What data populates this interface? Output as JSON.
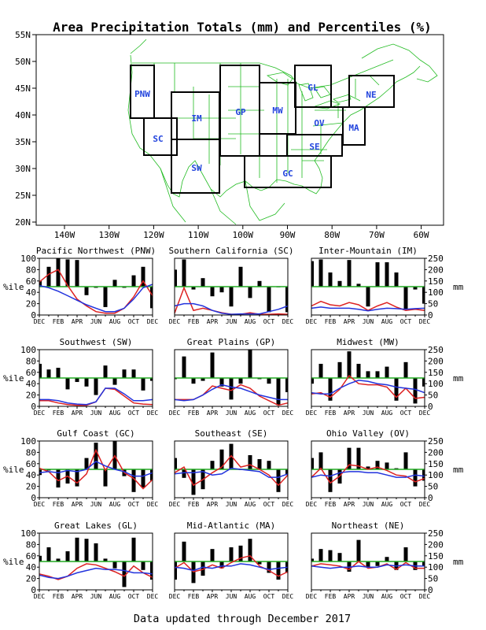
{
  "title": "Area Precipitation Totals (mm) and Percentiles (%)",
  "footer": "Data updated through December 2017",
  "colors": {
    "map_lines": "#22bb22",
    "region_box": "#000000",
    "region_label": "#2244dd",
    "bar": "#000000",
    "line_red": "#dd2222",
    "line_blue": "#2233dd",
    "line_green": "#22aa22"
  },
  "map": {
    "lat_labels": [
      "55N",
      "50N",
      "45N",
      "40N",
      "35N",
      "30N",
      "25N",
      "20N"
    ],
    "lon_labels": [
      "140W",
      "130W",
      "120W",
      "110W",
      "100W",
      "90W",
      "80W",
      "70W",
      "60W"
    ],
    "regions": [
      "PNW",
      "SC",
      "IM",
      "SW",
      "GP",
      "MW",
      "GL",
      "OV",
      "SE",
      "GC",
      "MA",
      "NE"
    ]
  },
  "panel_axis": {
    "percentile_ticks": [
      "0",
      "20",
      "40",
      "60",
      "80",
      "100"
    ],
    "mm_ticks": [
      "0",
      "50",
      "100",
      "150",
      "200",
      "250"
    ],
    "left_unit": "%ile",
    "right_unit": "mm",
    "month_labels": [
      "DEC",
      "FEB",
      "APR",
      "JUN",
      "AUG",
      "OCT",
      "DEC"
    ]
  },
  "chart_data": [
    {
      "type": "bar",
      "title": "Pacific Northwest (PNW)",
      "ylim": [
        0,
        100
      ],
      "y2lim": [
        0,
        250
      ],
      "months": [
        "DEC",
        "JAN",
        "FEB",
        "MAR",
        "APR",
        "MAY",
        "JUN",
        "JUL",
        "AUG",
        "SEP",
        "OCT",
        "NOV",
        "DEC"
      ],
      "percentiles": [
        60,
        85,
        100,
        98,
        97,
        35,
        48,
        14,
        62,
        48,
        70,
        85,
        12
      ],
      "series": [
        {
          "values": [
            145,
            180,
            200,
            130,
            70,
            40,
            15,
            8,
            8,
            30,
            80,
            150,
            85
          ]
        },
        {
          "values": [
            130,
            120,
            105,
            85,
            65,
            45,
            30,
            15,
            15,
            30,
            70,
            120,
            135
          ]
        }
      ]
    },
    {
      "type": "bar",
      "title": "Southern California (SC)",
      "ylim": [
        0,
        100
      ],
      "y2lim": [
        0,
        250
      ],
      "months": [
        "DEC",
        "JAN",
        "FEB",
        "MAR",
        "APR",
        "MAY",
        "JUN",
        "JUL",
        "AUG",
        "SEP",
        "OCT",
        "NOV",
        "DEC"
      ],
      "percentiles": [
        80,
        98,
        45,
        65,
        33,
        40,
        15,
        85,
        30,
        60,
        5,
        50,
        5
      ],
      "series": [
        {
          "values": [
            8,
            120,
            20,
            30,
            20,
            10,
            3,
            3,
            10,
            3,
            3,
            5,
            3
          ]
        },
        {
          "values": [
            40,
            50,
            50,
            40,
            20,
            8,
            3,
            5,
            5,
            5,
            15,
            25,
            40
          ]
        }
      ]
    },
    {
      "type": "bar",
      "title": "Inter-Mountain (IM)",
      "ylim": [
        0,
        100
      ],
      "y2lim": [
        0,
        250
      ],
      "months": [
        "DEC",
        "JAN",
        "FEB",
        "MAR",
        "APR",
        "MAY",
        "JUN",
        "JUL",
        "AUG",
        "SEP",
        "OCT",
        "NOV",
        "DEC"
      ],
      "percentiles": [
        95,
        98,
        75,
        60,
        97,
        55,
        15,
        93,
        93,
        75,
        10,
        45,
        20
      ],
      "series": [
        {
          "values": [
            40,
            60,
            45,
            40,
            55,
            45,
            20,
            40,
            55,
            35,
            20,
            25,
            20
          ]
        },
        {
          "values": [
            30,
            35,
            30,
            30,
            30,
            25,
            18,
            25,
            30,
            28,
            25,
            28,
            30
          ]
        }
      ]
    },
    {
      "type": "bar",
      "title": "Southwest (SW)",
      "ylim": [
        0,
        100
      ],
      "y2lim": [
        0,
        250
      ],
      "months": [
        "DEC",
        "JAN",
        "FEB",
        "MAR",
        "APR",
        "MAY",
        "JUN",
        "JUL",
        "AUG",
        "SEP",
        "OCT",
        "NOV",
        "DEC"
      ],
      "percentiles": [
        75,
        65,
        68,
        30,
        43,
        35,
        20,
        72,
        38,
        65,
        65,
        28,
        45
      ],
      "series": [
        {
          "values": [
            25,
            25,
            15,
            8,
            5,
            5,
            20,
            80,
            75,
            45,
            15,
            10,
            8
          ]
        },
        {
          "values": [
            30,
            30,
            25,
            15,
            10,
            8,
            20,
            80,
            80,
            55,
            25,
            25,
            30
          ]
        }
      ]
    },
    {
      "type": "bar",
      "title": "Great Plains (GP)",
      "ylim": [
        0,
        100
      ],
      "y2lim": [
        0,
        250
      ],
      "months": [
        "DEC",
        "JAN",
        "FEB",
        "MAR",
        "APR",
        "MAY",
        "JUN",
        "JUL",
        "AUG",
        "SEP",
        "OCT",
        "NOV",
        "DEC"
      ],
      "percentiles": [
        48,
        88,
        40,
        45,
        95,
        35,
        12,
        40,
        100,
        48,
        40,
        2,
        25
      ],
      "series": [
        {
          "values": [
            30,
            30,
            30,
            50,
            90,
            80,
            70,
            95,
            80,
            45,
            25,
            5,
            15
          ]
        },
        {
          "values": [
            30,
            25,
            30,
            50,
            75,
            95,
            85,
            80,
            65,
            50,
            40,
            30,
            30
          ]
        }
      ]
    },
    {
      "type": "bar",
      "title": "Midwest (MW)",
      "ylim": [
        0,
        100
      ],
      "y2lim": [
        0,
        250
      ],
      "months": [
        "DEC",
        "JAN",
        "FEB",
        "MAR",
        "APR",
        "MAY",
        "JUN",
        "JUL",
        "AUG",
        "SEP",
        "OCT",
        "NOV",
        "DEC"
      ],
      "percentiles": [
        40,
        75,
        10,
        78,
        97,
        75,
        62,
        62,
        70,
        10,
        78,
        5,
        35
      ],
      "series": [
        {
          "values": [
            55,
            60,
            40,
            75,
            135,
            100,
            95,
            95,
            85,
            40,
            80,
            35,
            40
          ]
        },
        {
          "values": [
            60,
            55,
            55,
            80,
            100,
            115,
            110,
            100,
            95,
            85,
            80,
            75,
            60
          ]
        }
      ]
    },
    {
      "type": "bar",
      "title": "Gulf Coast (GC)",
      "ylim": [
        0,
        100
      ],
      "y2lim": [
        0,
        250
      ],
      "months": [
        "DEC",
        "JAN",
        "FEB",
        "MAR",
        "APR",
        "MAY",
        "JUN",
        "JUL",
        "AUG",
        "SEP",
        "OCT",
        "NOV",
        "DEC"
      ],
      "percentiles": [
        40,
        48,
        18,
        25,
        20,
        70,
        97,
        20,
        100,
        38,
        10,
        18,
        30
      ],
      "series": [
        {
          "values": [
            130,
            115,
            75,
            95,
            65,
            105,
            210,
            120,
            185,
            110,
            85,
            40,
            80
          ]
        },
        {
          "values": [
            110,
            115,
            110,
            120,
            115,
            125,
            160,
            140,
            125,
            115,
            95,
            95,
            110
          ]
        }
      ]
    },
    {
      "type": "bar",
      "title": "Southeast (SE)",
      "ylim": [
        0,
        100
      ],
      "y2lim": [
        0,
        250
      ],
      "months": [
        "DEC",
        "JAN",
        "FEB",
        "MAR",
        "APR",
        "MAY",
        "JUN",
        "JUL",
        "AUG",
        "SEP",
        "OCT",
        "NOV",
        "DEC"
      ],
      "percentiles": [
        70,
        35,
        5,
        15,
        65,
        85,
        95,
        50,
        75,
        68,
        65,
        10,
        40
      ],
      "series": [
        {
          "values": [
            110,
            135,
            55,
            80,
            110,
            135,
            185,
            135,
            145,
            125,
            100,
            55,
            100
          ]
        },
        {
          "values": [
            105,
            110,
            110,
            115,
            100,
            105,
            130,
            125,
            120,
            115,
            90,
            90,
            105
          ]
        }
      ]
    },
    {
      "type": "bar",
      "title": "Ohio Valley (OV)",
      "ylim": [
        0,
        100
      ],
      "y2lim": [
        0,
        250
      ],
      "months": [
        "DEC",
        "JAN",
        "FEB",
        "MAR",
        "APR",
        "MAY",
        "JUN",
        "JUL",
        "AUG",
        "SEP",
        "OCT",
        "NOV",
        "DEC"
      ],
      "percentiles": [
        70,
        80,
        10,
        25,
        88,
        88,
        55,
        65,
        62,
        52,
        80,
        20,
        30
      ],
      "series": [
        {
          "values": [
            90,
            130,
            65,
            95,
            145,
            140,
            125,
            135,
            120,
            100,
            95,
            70,
            85
          ]
        },
        {
          "values": [
            90,
            100,
            95,
            110,
            115,
            115,
            110,
            110,
            100,
            90,
            90,
            100,
            95
          ]
        }
      ]
    },
    {
      "type": "bar",
      "title": "Great Lakes (GL)",
      "ylim": [
        0,
        100
      ],
      "y2lim": [
        0,
        250
      ],
      "months": [
        "DEC",
        "JAN",
        "FEB",
        "MAR",
        "APR",
        "MAY",
        "JUN",
        "JUL",
        "AUG",
        "SEP",
        "OCT",
        "NOV",
        "DEC"
      ],
      "percentiles": [
        60,
        75,
        55,
        68,
        92,
        90,
        82,
        55,
        38,
        5,
        92,
        35,
        18
      ],
      "series": [
        {
          "values": [
            70,
            60,
            45,
            60,
            95,
            115,
            110,
            95,
            80,
            60,
            105,
            75,
            55
          ]
        },
        {
          "values": [
            65,
            55,
            50,
            60,
            75,
            85,
            95,
            90,
            90,
            85,
            75,
            75,
            70
          ]
        }
      ]
    },
    {
      "type": "bar",
      "title": "Mid-Atlantic (MA)",
      "ylim": [
        0,
        100
      ],
      "y2lim": [
        0,
        250
      ],
      "months": [
        "DEC",
        "JAN",
        "FEB",
        "MAR",
        "APR",
        "MAY",
        "JUN",
        "JUL",
        "AUG",
        "SEP",
        "OCT",
        "NOV",
        "DEC"
      ],
      "percentiles": [
        18,
        85,
        12,
        25,
        72,
        38,
        75,
        78,
        90,
        45,
        30,
        18,
        30
      ],
      "series": [
        {
          "values": [
            95,
            120,
            80,
            90,
            110,
            95,
            120,
            140,
            150,
            105,
            85,
            60,
            80
          ]
        },
        {
          "values": [
            100,
            95,
            85,
            100,
            95,
            105,
            105,
            115,
            110,
            100,
            90,
            95,
            100
          ]
        }
      ]
    },
    {
      "type": "bar",
      "title": "Northeast (NE)",
      "ylim": [
        0,
        100
      ],
      "y2lim": [
        0,
        250
      ],
      "months": [
        "DEC",
        "JAN",
        "FEB",
        "MAR",
        "APR",
        "MAY",
        "JUN",
        "JUL",
        "AUG",
        "SEP",
        "OCT",
        "NOV",
        "DEC"
      ],
      "percentiles": [
        55,
        72,
        70,
        65,
        32,
        88,
        40,
        42,
        58,
        35,
        75,
        35,
        42
      ],
      "series": [
        {
          "values": [
            105,
            115,
            110,
            105,
            90,
            125,
            95,
            100,
            115,
            90,
            120,
            95,
            95
          ]
        },
        {
          "values": [
            105,
            100,
            95,
            100,
            100,
            105,
            100,
            100,
            110,
            105,
            110,
            105,
            105
          ]
        }
      ]
    }
  ]
}
